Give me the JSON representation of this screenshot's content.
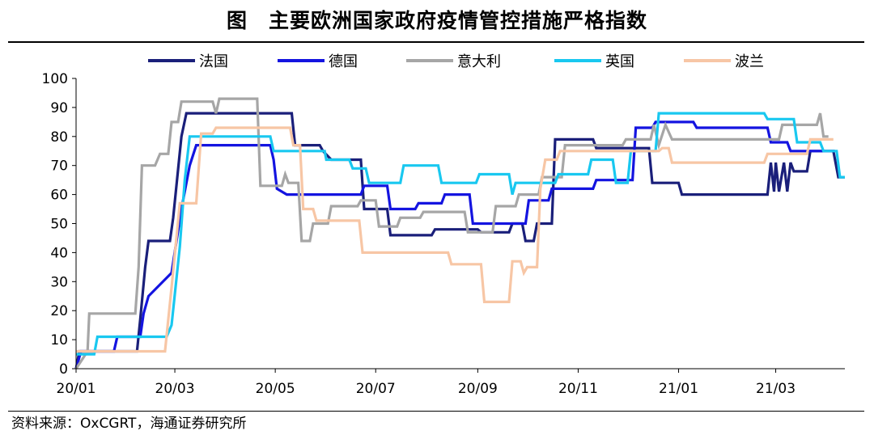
{
  "title": "图　主要欧洲国家政府疫情管控措施严格指数",
  "source": "资料来源：OxCGRT，海通证券研究所",
  "chart_data": {
    "type": "line",
    "title": "图　主要欧洲国家政府疫情管控措施严格指数",
    "xlabel": "",
    "ylabel": "",
    "x_range": [
      "2020-01-01",
      "2021-04-12"
    ],
    "x_ticks": [
      "2020-01-01",
      "2020-03-01",
      "2020-05-01",
      "2020-07-01",
      "2020-09-01",
      "2020-11-01",
      "2021-01-01",
      "2021-03-01"
    ],
    "x_tick_labels": [
      "20/01",
      "20/03",
      "20/05",
      "20/07",
      "20/09",
      "20/11",
      "21/01",
      "21/03"
    ],
    "ylim": [
      0,
      100
    ],
    "y_ticks": [
      0,
      10,
      20,
      30,
      40,
      50,
      60,
      70,
      80,
      90,
      100
    ],
    "grid": false,
    "legend_position": "top",
    "series": [
      {
        "name": "法国",
        "color": "#1a1f7a",
        "points": [
          [
            "2020-01-01",
            0
          ],
          [
            "2020-01-03",
            6
          ],
          [
            "2020-02-07",
            6
          ],
          [
            "2020-02-09",
            17
          ],
          [
            "2020-02-12",
            35
          ],
          [
            "2020-02-14",
            44
          ],
          [
            "2020-02-27",
            44
          ],
          [
            "2020-02-29",
            52
          ],
          [
            "2020-03-05",
            80
          ],
          [
            "2020-03-08",
            88
          ],
          [
            "2020-05-11",
            88
          ],
          [
            "2020-05-13",
            77
          ],
          [
            "2020-05-28",
            77
          ],
          [
            "2020-05-30",
            75
          ],
          [
            "2020-06-04",
            72
          ],
          [
            "2020-06-22",
            72
          ],
          [
            "2020-06-24",
            55
          ],
          [
            "2020-07-08",
            55
          ],
          [
            "2020-07-10",
            46
          ],
          [
            "2020-08-04",
            46
          ],
          [
            "2020-08-06",
            48
          ],
          [
            "2020-09-01",
            48
          ],
          [
            "2020-09-03",
            47
          ],
          [
            "2020-09-20",
            47
          ],
          [
            "2020-09-22",
            50
          ],
          [
            "2020-09-28",
            50
          ],
          [
            "2020-09-30",
            44
          ],
          [
            "2020-10-05",
            44
          ],
          [
            "2020-10-07",
            50
          ],
          [
            "2020-10-16",
            50
          ],
          [
            "2020-10-18",
            79
          ],
          [
            "2020-11-10",
            79
          ],
          [
            "2020-11-12",
            76
          ],
          [
            "2020-12-14",
            76
          ],
          [
            "2020-12-16",
            64
          ],
          [
            "2021-01-01",
            64
          ],
          [
            "2021-01-03",
            60
          ],
          [
            "2021-02-24",
            60
          ],
          [
            "2021-02-26",
            71
          ],
          [
            "2021-02-28",
            61
          ],
          [
            "2021-03-01",
            71
          ],
          [
            "2021-03-03",
            61
          ],
          [
            "2021-03-06",
            71
          ],
          [
            "2021-03-08",
            61
          ],
          [
            "2021-03-10",
            71
          ],
          [
            "2021-03-12",
            68
          ],
          [
            "2021-03-20",
            68
          ],
          [
            "2021-03-22",
            75
          ],
          [
            "2021-04-05",
            75
          ],
          [
            "2021-04-08",
            66
          ],
          [
            "2021-04-12",
            66
          ]
        ]
      },
      {
        "name": "德国",
        "color": "#1414e0",
        "points": [
          [
            "2020-01-01",
            0
          ],
          [
            "2020-01-04",
            6
          ],
          [
            "2020-01-24",
            6
          ],
          [
            "2020-01-26",
            11
          ],
          [
            "2020-02-09",
            11
          ],
          [
            "2020-02-11",
            19
          ],
          [
            "2020-02-14",
            25
          ],
          [
            "2020-02-28",
            33
          ],
          [
            "2020-03-05",
            55
          ],
          [
            "2020-03-10",
            70
          ],
          [
            "2020-03-14",
            77
          ],
          [
            "2020-04-28",
            77
          ],
          [
            "2020-04-30",
            72
          ],
          [
            "2020-05-02",
            62
          ],
          [
            "2020-05-08",
            60
          ],
          [
            "2020-06-22",
            60
          ],
          [
            "2020-06-24",
            63
          ],
          [
            "2020-07-08",
            63
          ],
          [
            "2020-07-10",
            55
          ],
          [
            "2020-07-25",
            55
          ],
          [
            "2020-07-27",
            57
          ],
          [
            "2020-08-10",
            57
          ],
          [
            "2020-08-12",
            60
          ],
          [
            "2020-08-27",
            60
          ],
          [
            "2020-08-29",
            50
          ],
          [
            "2020-09-30",
            50
          ],
          [
            "2020-10-02",
            58
          ],
          [
            "2020-10-14",
            58
          ],
          [
            "2020-10-16",
            62
          ],
          [
            "2020-11-10",
            62
          ],
          [
            "2020-11-12",
            65
          ],
          [
            "2020-12-04",
            65
          ],
          [
            "2020-12-06",
            83
          ],
          [
            "2020-12-16",
            83
          ],
          [
            "2020-12-18",
            85
          ],
          [
            "2021-01-10",
            85
          ],
          [
            "2021-01-12",
            83
          ],
          [
            "2021-02-24",
            83
          ],
          [
            "2021-02-26",
            78
          ],
          [
            "2021-03-08",
            78
          ],
          [
            "2021-03-10",
            75
          ],
          [
            "2021-04-06",
            75
          ]
        ]
      },
      {
        "name": "意大利",
        "color": "#a6a6a6",
        "points": [
          [
            "2020-01-01",
            0
          ],
          [
            "2020-01-08",
            6
          ],
          [
            "2020-01-09",
            19
          ],
          [
            "2020-02-06",
            19
          ],
          [
            "2020-02-08",
            35
          ],
          [
            "2020-02-10",
            70
          ],
          [
            "2020-02-18",
            70
          ],
          [
            "2020-02-21",
            74
          ],
          [
            "2020-02-26",
            74
          ],
          [
            "2020-02-28",
            85
          ],
          [
            "2020-03-03",
            85
          ],
          [
            "2020-03-05",
            92
          ],
          [
            "2020-03-24",
            92
          ],
          [
            "2020-03-26",
            88
          ],
          [
            "2020-03-28",
            93
          ],
          [
            "2020-04-20",
            93
          ],
          [
            "2020-04-22",
            63
          ],
          [
            "2020-05-05",
            63
          ],
          [
            "2020-05-07",
            67
          ],
          [
            "2020-05-09",
            64
          ],
          [
            "2020-05-15",
            64
          ],
          [
            "2020-05-17",
            44
          ],
          [
            "2020-05-22",
            44
          ],
          [
            "2020-05-24",
            50
          ],
          [
            "2020-06-02",
            50
          ],
          [
            "2020-06-04",
            56
          ],
          [
            "2020-06-20",
            56
          ],
          [
            "2020-06-22",
            58
          ],
          [
            "2020-07-01",
            58
          ],
          [
            "2020-07-03",
            49
          ],
          [
            "2020-07-14",
            49
          ],
          [
            "2020-07-16",
            52
          ],
          [
            "2020-07-28",
            52
          ],
          [
            "2020-07-30",
            54
          ],
          [
            "2020-08-24",
            54
          ],
          [
            "2020-08-26",
            47
          ],
          [
            "2020-09-10",
            47
          ],
          [
            "2020-09-12",
            56
          ],
          [
            "2020-09-24",
            56
          ],
          [
            "2020-09-26",
            60
          ],
          [
            "2020-10-08",
            60
          ],
          [
            "2020-10-10",
            66
          ],
          [
            "2020-10-22",
            66
          ],
          [
            "2020-10-24",
            77
          ],
          [
            "2020-11-28",
            77
          ],
          [
            "2020-11-30",
            79
          ],
          [
            "2020-12-15",
            79
          ],
          [
            "2020-12-17",
            84
          ],
          [
            "2020-12-20",
            77
          ],
          [
            "2020-12-24",
            84
          ],
          [
            "2020-12-28",
            79
          ],
          [
            "2021-03-03",
            79
          ],
          [
            "2021-03-05",
            84
          ],
          [
            "2021-03-26",
            84
          ],
          [
            "2021-03-28",
            88
          ],
          [
            "2021-03-30",
            80
          ],
          [
            "2021-04-02",
            80
          ]
        ]
      },
      {
        "name": "英国",
        "color": "#19c8f0",
        "points": [
          [
            "2020-01-01",
            5
          ],
          [
            "2020-01-12",
            5
          ],
          [
            "2020-01-14",
            11
          ],
          [
            "2020-02-25",
            11
          ],
          [
            "2020-02-28",
            15
          ],
          [
            "2020-03-04",
            42
          ],
          [
            "2020-03-07",
            65
          ],
          [
            "2020-03-10",
            80
          ],
          [
            "2020-04-28",
            80
          ],
          [
            "2020-04-30",
            75
          ],
          [
            "2020-05-31",
            75
          ],
          [
            "2020-06-01",
            72
          ],
          [
            "2020-06-15",
            72
          ],
          [
            "2020-06-17",
            69
          ],
          [
            "2020-06-25",
            69
          ],
          [
            "2020-06-27",
            64
          ],
          [
            "2020-07-16",
            64
          ],
          [
            "2020-07-18",
            70
          ],
          [
            "2020-08-08",
            70
          ],
          [
            "2020-08-10",
            64
          ],
          [
            "2020-08-31",
            64
          ],
          [
            "2020-09-02",
            67
          ],
          [
            "2020-09-20",
            67
          ],
          [
            "2020-09-22",
            60
          ],
          [
            "2020-09-24",
            64
          ],
          [
            "2020-10-18",
            64
          ],
          [
            "2020-10-20",
            67
          ],
          [
            "2020-11-07",
            67
          ],
          [
            "2020-11-09",
            72
          ],
          [
            "2020-11-22",
            72
          ],
          [
            "2020-11-24",
            64
          ],
          [
            "2020-12-01",
            64
          ],
          [
            "2020-12-03",
            75
          ],
          [
            "2020-12-18",
            75
          ],
          [
            "2020-12-20",
            88
          ],
          [
            "2021-02-22",
            88
          ],
          [
            "2021-02-24",
            86
          ],
          [
            "2021-03-12",
            86
          ],
          [
            "2021-03-14",
            78
          ],
          [
            "2021-03-28",
            78
          ],
          [
            "2021-03-30",
            75
          ],
          [
            "2021-04-07",
            75
          ],
          [
            "2021-04-09",
            66
          ],
          [
            "2021-04-12",
            66
          ]
        ]
      },
      {
        "name": "波兰",
        "color": "#f7c6a5",
        "points": [
          [
            "2020-01-01",
            6
          ],
          [
            "2020-02-24",
            6
          ],
          [
            "2020-02-28",
            28
          ],
          [
            "2020-03-04",
            57
          ],
          [
            "2020-03-14",
            57
          ],
          [
            "2020-03-17",
            81
          ],
          [
            "2020-03-24",
            81
          ],
          [
            "2020-03-26",
            83
          ],
          [
            "2020-05-10",
            83
          ],
          [
            "2020-05-12",
            77
          ],
          [
            "2020-05-16",
            77
          ],
          [
            "2020-05-18",
            55
          ],
          [
            "2020-05-24",
            55
          ],
          [
            "2020-05-26",
            51
          ],
          [
            "2020-06-21",
            51
          ],
          [
            "2020-06-23",
            40
          ],
          [
            "2020-08-14",
            40
          ],
          [
            "2020-08-16",
            36
          ],
          [
            "2020-09-03",
            36
          ],
          [
            "2020-09-05",
            23
          ],
          [
            "2020-09-20",
            23
          ],
          [
            "2020-09-22",
            37
          ],
          [
            "2020-09-27",
            37
          ],
          [
            "2020-09-29",
            33
          ],
          [
            "2020-10-01",
            35
          ],
          [
            "2020-10-07",
            35
          ],
          [
            "2020-10-09",
            62
          ],
          [
            "2020-10-12",
            72
          ],
          [
            "2020-10-19",
            72
          ],
          [
            "2020-10-21",
            75
          ],
          [
            "2020-12-20",
            75
          ],
          [
            "2020-12-22",
            76
          ],
          [
            "2020-12-26",
            76
          ],
          [
            "2020-12-28",
            71
          ],
          [
            "2021-02-22",
            71
          ],
          [
            "2021-02-24",
            74
          ],
          [
            "2021-03-20",
            74
          ],
          [
            "2021-03-22",
            79
          ],
          [
            "2021-04-05",
            79
          ]
        ]
      }
    ]
  }
}
